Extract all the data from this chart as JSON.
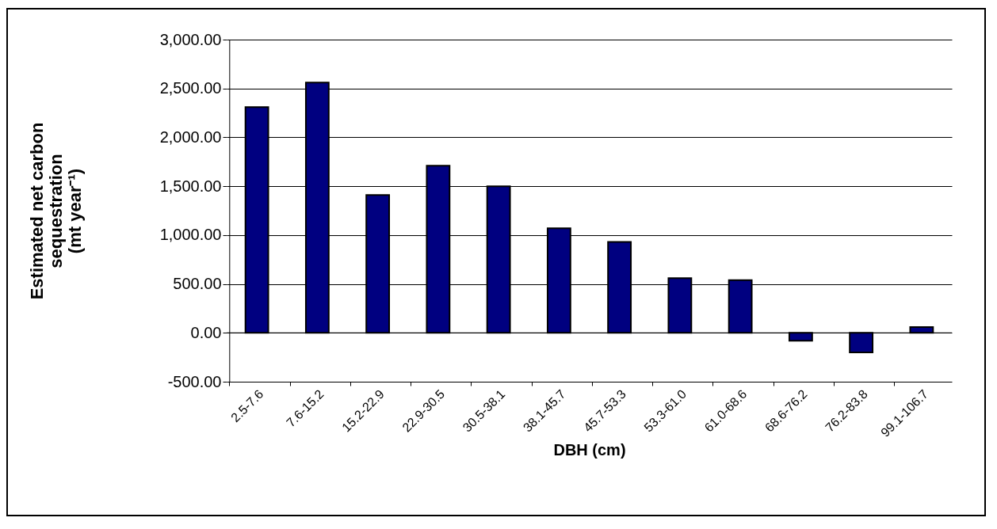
{
  "chart_data": {
    "type": "bar",
    "xlabel": "DBH (cm)",
    "ylabel": "Estimated net carbon sequestration (mt year⁻¹)",
    "categories": [
      "2.5-7.6",
      "7.6-15.2",
      "15.2-22.9",
      "22.9-30.5",
      "30.5-38.1",
      "38.1-45.7",
      "45.7-53.3",
      "53.3-61.0",
      "61.0-68.6",
      "68.6-76.2",
      "76.2-83.8",
      "99.1-106.7"
    ],
    "values": [
      2310,
      2560,
      1410,
      1710,
      1500,
      1070,
      930,
      560,
      540,
      -80,
      -200,
      60
    ],
    "color": "#000080",
    "ylim": [
      -500,
      3000
    ],
    "yticks": [
      {
        "value": -500,
        "label": "-500.00"
      },
      {
        "value": 0,
        "label": "0.00"
      },
      {
        "value": 500,
        "label": "500.00"
      },
      {
        "value": 1000,
        "label": "1,000.00"
      },
      {
        "value": 1500,
        "label": "1,500.00"
      },
      {
        "value": 2000,
        "label": "2,000.00"
      },
      {
        "value": 2500,
        "label": "2,500.00"
      },
      {
        "value": 3000,
        "label": "3,000.00"
      }
    ],
    "grid": "y"
  }
}
